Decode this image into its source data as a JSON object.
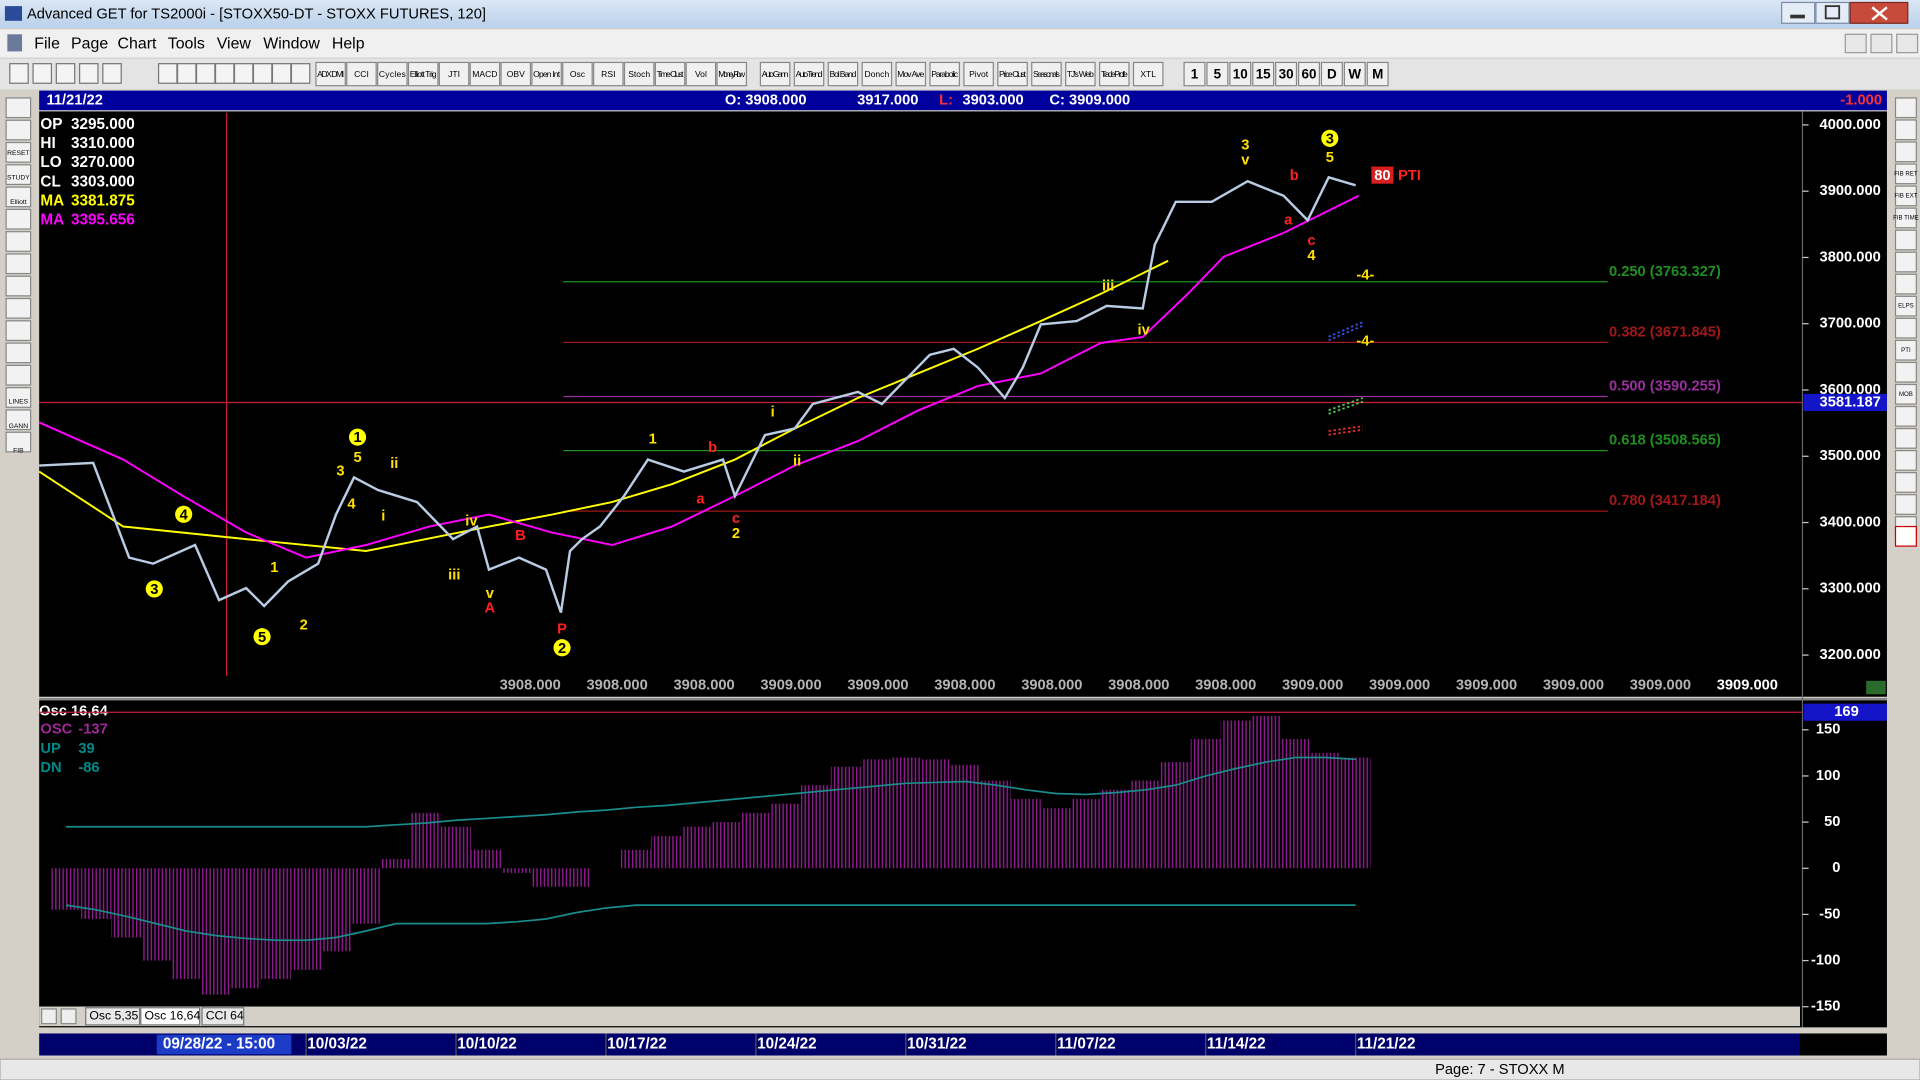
{
  "window": {
    "title": "Advanced GET for TS2000i - [STOXX50-DT - STOXX FUTURES, 120]"
  },
  "menu": [
    "File",
    "Page",
    "Chart",
    "Tools",
    "View",
    "Window",
    "Help"
  ],
  "toolbar": [
    "ADX DMI",
    "CCI",
    "Cycles",
    "Elliott Trig",
    "JTI",
    "MACD",
    "OBV",
    "Open Int",
    "Osc",
    "RSI",
    "Stoch",
    "Time Clust",
    "Vol",
    "Money Flow",
    "Auto Gann",
    "Auto Trend",
    "Bol Band",
    "Donch",
    "Mov Ave",
    "Parabolic",
    "Pivot",
    "Price Clust",
    "Seasonals",
    "TJ's Web",
    "Trade Profile",
    "XTL"
  ],
  "intervals": [
    "1",
    "5",
    "10",
    "15",
    "30",
    "60",
    "D",
    "W",
    "M"
  ],
  "left_tools": [
    "RESET",
    "STUDY",
    "Elliott",
    "LINES",
    "GANN",
    "FIB"
  ],
  "right_tools": [
    "FIB RET",
    "FIB EXT",
    "FIB TIME",
    "ELPS",
    "PTI",
    "MOB"
  ],
  "header": {
    "date": "11/21/22",
    "open": "O: 3908.000",
    "high": "3917.000",
    "low_label": "L:",
    "low": "3903.000",
    "close": "C: 3909.000",
    "change": "-1.000"
  },
  "readout": [
    {
      "label": "OP",
      "value": "3295.000",
      "color": "#ffffff"
    },
    {
      "label": "HI",
      "value": "3310.000",
      "color": "#ffffff"
    },
    {
      "label": "LO",
      "value": "3270.000",
      "color": "#ffffff"
    },
    {
      "label": "CL",
      "value": "3303.000",
      "color": "#ffffff"
    },
    {
      "label": "MA",
      "value": "3381.875",
      "color": "#ffff00"
    },
    {
      "label": "MA",
      "value": "3395.656",
      "color": "#ff00ff"
    }
  ],
  "chart_data": [
    {
      "type": "line",
      "xlim": [
        -8.9,
        49.9
      ],
      "xticks": [
        {
          "value": 0,
          "label": "10/03/22"
        },
        {
          "value": 5,
          "label": "10/10/22"
        },
        {
          "value": 10,
          "label": "10/17/22"
        },
        {
          "value": 15,
          "label": "10/24/22"
        },
        {
          "value": 20,
          "label": "10/31/22"
        },
        {
          "value": 25,
          "label": "11/07/22"
        },
        {
          "value": 30,
          "label": "11/14/22"
        },
        {
          "value": 35,
          "label": "11/21/22"
        }
      ],
      "ylim": [
        3139,
        4018.5
      ],
      "yticks": [
        {
          "value": 3200,
          "label": "3200.000"
        },
        {
          "value": 3300,
          "label": "3300.000"
        },
        {
          "value": 3400,
          "label": "3400.000"
        },
        {
          "value": 3500,
          "label": "3500.000"
        },
        {
          "value": 3600,
          "label": "3600.000"
        },
        {
          "value": 3700,
          "label": "3700.000"
        },
        {
          "value": 3800,
          "label": "3800.000"
        },
        {
          "value": 3900,
          "label": "3900.000"
        },
        {
          "value": 4000,
          "label": "4000.000"
        }
      ],
      "cursor": 3581.187,
      "cursor_x": {
        "value": -2.65,
        "label": "09/28/22 - 15:00"
      },
      "series": [
        {
          "color": "#b8cce4",
          "x": [
            -8.9,
            -7.1,
            -5.9,
            -5.1,
            -3.7,
            -2.9,
            -2.0,
            -1.4,
            -0.6,
            0.4,
            1.0,
            1.6,
            2.4,
            3.7,
            4.9,
            5.7,
            6.1,
            7.1,
            8.0,
            8.5,
            8.8,
            9.2,
            9.8,
            10.6,
            11.4,
            12.6,
            13.9,
            14.3,
            15.3,
            16.3,
            16.9,
            18.4,
            19.2,
            20.8,
            21.6,
            22.4,
            23.3,
            23.9,
            24.5,
            25.7,
            26.7,
            27.9,
            28.3,
            29.0,
            30.2,
            31.4,
            32.6,
            33.4,
            34.1,
            35.0
          ],
          "values": [
            3486,
            3490,
            3347,
            3338,
            3366,
            3283,
            3301,
            3274,
            3311,
            3338,
            3412,
            3468,
            3449,
            3431,
            3375,
            3394,
            3329,
            3347,
            3329,
            3264,
            3357,
            3375,
            3394,
            3440,
            3495,
            3477,
            3495,
            3440,
            3532,
            3542,
            3579,
            3597,
            3579,
            3653,
            3662,
            3634,
            3588,
            3634,
            3699,
            3704,
            3727,
            3723,
            3819,
            3884,
            3884,
            3915,
            3893,
            3856,
            3921,
            3909
          ]
        },
        {
          "color": "#ffff00",
          "x": [
            -8.9,
            -6.1,
            -2.0,
            2.0,
            6.1,
            8.2,
            10.2,
            12.2,
            14.3,
            16.3,
            18.4,
            20.4,
            22.4,
            24.5,
            26.5,
            28.75
          ],
          "values": [
            3477,
            3394,
            3375,
            3357,
            3394,
            3412,
            3431,
            3458,
            3495,
            3542,
            3588,
            3625,
            3662,
            3704,
            3745,
            3795
          ]
        },
        {
          "color": "#ff00ff",
          "x": [
            -8.9,
            -6.1,
            -4.1,
            -2.0,
            0,
            2.0,
            4.1,
            6.1,
            8.2,
            10.2,
            12.2,
            14.3,
            16.3,
            18.4,
            20.4,
            22.4,
            24.5,
            26.5,
            27.9,
            29.4,
            30.6,
            32.6,
            35.1
          ],
          "values": [
            3551,
            3495,
            3440,
            3385,
            3347,
            3366,
            3394,
            3412,
            3385,
            3366,
            3394,
            3440,
            3486,
            3523,
            3569,
            3606,
            3625,
            3671,
            3680,
            3745,
            3801,
            3837,
            3893
          ]
        }
      ],
      "levels": [
        {
          "label": "0.250 (3763.327)",
          "value": 3763.327,
          "color": "#1f8f1f"
        },
        {
          "label": "0.382 (3671.845)",
          "value": 3671.845,
          "color": "#a01818"
        },
        {
          "label": "0.500 (3590.255)",
          "value": 3590.255,
          "color": "#9a2fa0"
        },
        {
          "label": "0.618 (3508.565)",
          "value": 3508.565,
          "color": "#1f8f1f"
        },
        {
          "label": "0.780 (3417.184)",
          "value": 3417.184,
          "color": "#a01818"
        }
      ],
      "annotations": [
        "3",
        "4",
        "1",
        "5",
        "2",
        "1",
        "5",
        "3",
        "4",
        "ii",
        "i",
        "iv",
        "iii",
        "v",
        "A",
        "B",
        "P",
        "2",
        "1",
        "b",
        "a",
        "c",
        "2",
        "i",
        "ii",
        "iii",
        "iv",
        "3",
        "v",
        "b",
        "a",
        "c",
        "4",
        "3",
        "5",
        "-4-",
        "-4-",
        "80",
        "PTI"
      ],
      "bottom_values": [
        "3908.000",
        "3908.000",
        "3908.000",
        "3909.000",
        "3909.000",
        "3908.000",
        "3908.000",
        "3908.000",
        "3908.000",
        "3909.000",
        "3909.000",
        "3909.000",
        "3909.000",
        "3909.000",
        "3909.000"
      ]
    },
    {
      "type": "bar",
      "title": "Osc 16,64",
      "readout": [
        {
          "label": "OSC",
          "value": "-137",
          "color": "#a0289a"
        },
        {
          "label": "UP",
          "value": "39",
          "color": "#008b8b"
        },
        {
          "label": "DN",
          "value": "-86",
          "color": "#008b8b"
        }
      ],
      "color": "#8b1a8b",
      "xlim": [
        -8.9,
        49.9
      ],
      "ylim": [
        -171,
        180.5
      ],
      "yticks": [
        -150,
        -100,
        -50,
        0,
        50,
        100,
        150
      ],
      "cursor": 169,
      "x": [
        -8,
        -7,
        -6,
        -5,
        -4,
        -3,
        -2,
        -1,
        0,
        1,
        2,
        3,
        4,
        5,
        6,
        7,
        8,
        9,
        10,
        11,
        12,
        13,
        14,
        15,
        16,
        17,
        18,
        19,
        20,
        21,
        22,
        23,
        24,
        25,
        26,
        27,
        28,
        29,
        30,
        31,
        32,
        33,
        34,
        35
      ],
      "values": [
        -45,
        -55,
        -75,
        -100,
        -120,
        -137,
        -130,
        -120,
        -110,
        -90,
        -60,
        10,
        60,
        45,
        20,
        -5,
        -20,
        -20,
        0,
        20,
        35,
        45,
        50,
        60,
        70,
        90,
        110,
        118,
        120,
        118,
        112,
        95,
        75,
        65,
        75,
        85,
        95,
        115,
        140,
        160,
        165,
        140,
        125,
        120
      ],
      "series": [
        {
          "color": "#1a8c8c",
          "values": [
            45,
            45,
            45,
            45,
            45,
            45,
            45,
            45,
            45,
            45,
            45,
            47,
            49,
            52,
            54,
            56,
            58,
            61,
            63,
            66,
            68,
            71,
            74,
            77,
            80,
            83,
            86,
            89,
            92,
            93,
            94,
            90,
            85,
            81,
            80,
            82,
            85,
            90,
            100,
            108,
            115,
            120,
            120,
            118
          ]
        },
        {
          "color": "#1a8c8c",
          "values": [
            -40,
            -45,
            -52,
            -60,
            -68,
            -73,
            -76,
            -78,
            -78,
            -75,
            -68,
            -60,
            -60,
            -60,
            -60,
            -58,
            -55,
            -48,
            -43,
            -40,
            -40,
            -40,
            -40,
            -40,
            -40,
            -40,
            -40,
            -40,
            -40,
            -40,
            -40,
            -40,
            -40,
            -40,
            -40,
            -40,
            -40,
            -40,
            -40,
            -40,
            -40,
            -40,
            -40,
            -40
          ]
        }
      ]
    }
  ],
  "tabs": [
    "Osc 5,35",
    "Osc 16,64",
    "CCI 64"
  ],
  "status": "Page: 7 - STOXX M"
}
